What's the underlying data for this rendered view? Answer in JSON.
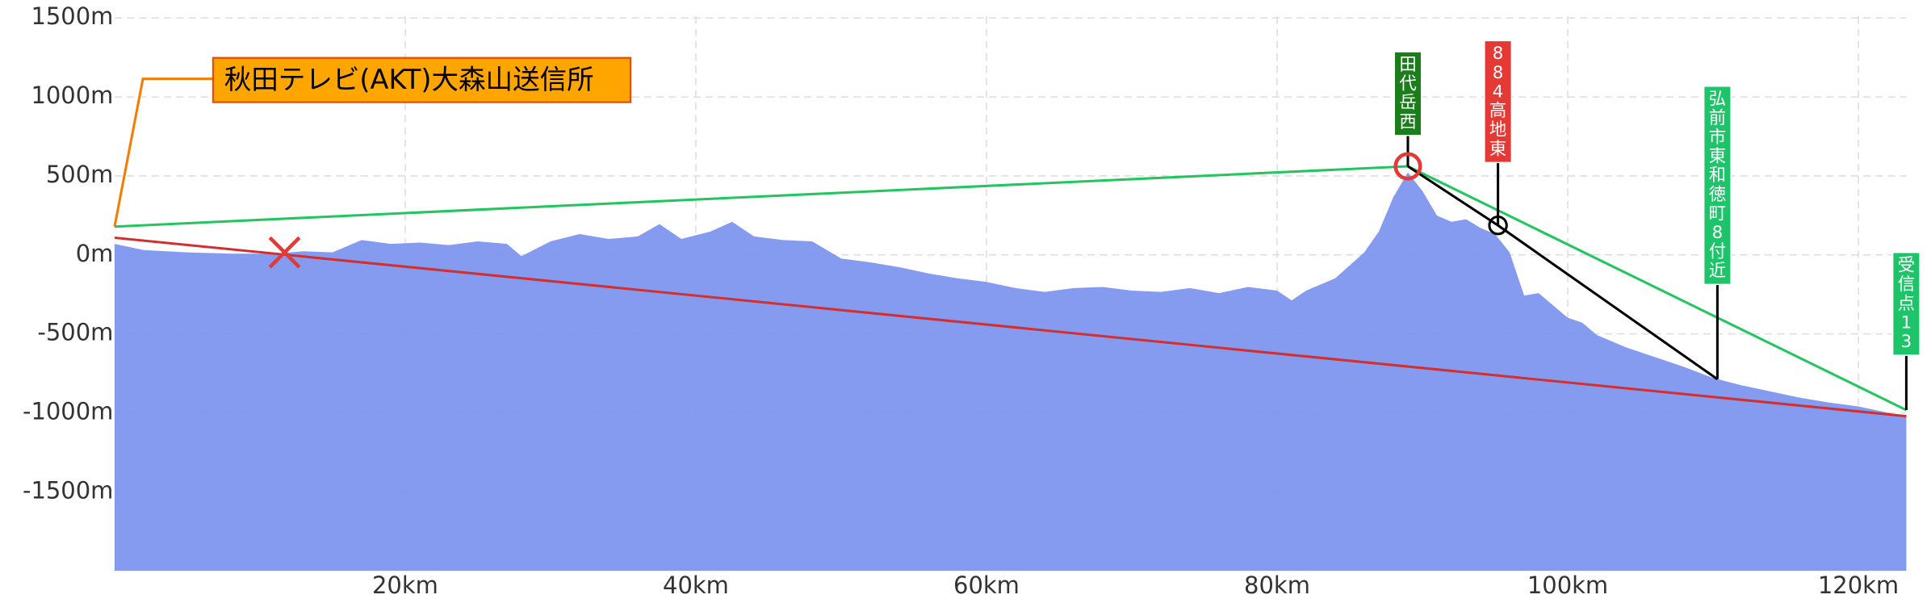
{
  "chart_data": {
    "type": "area",
    "color": "#7b93ee",
    "grid": true,
    "x": [
      0,
      2,
      5,
      8,
      11,
      13,
      15,
      17,
      19,
      21,
      23,
      25,
      27,
      28,
      30,
      32,
      34,
      36,
      37.5,
      39,
      41,
      42.5,
      44,
      46,
      48,
      50,
      52,
      54,
      56,
      58,
      60,
      62,
      64,
      66,
      68,
      70,
      72,
      74,
      76,
      78,
      80,
      81,
      82,
      84,
      86,
      87,
      88,
      89,
      90,
      91,
      92,
      93,
      94,
      95,
      96,
      97,
      98,
      99,
      100,
      101,
      102,
      104,
      106,
      108,
      110,
      112,
      114,
      116,
      118,
      120,
      122,
      123.3
    ],
    "values": [
      70,
      31,
      16,
      8,
      8,
      23,
      16,
      94,
      70,
      78,
      62,
      86,
      70,
      -8,
      86,
      132,
      101,
      117,
      195,
      101,
      148,
      210,
      117,
      94,
      86,
      -23,
      -47,
      -78,
      -117,
      -148,
      -171,
      -210,
      -234,
      -210,
      -203,
      -226,
      -234,
      -210,
      -242,
      -203,
      -226,
      -288,
      -226,
      -148,
      16,
      148,
      366,
      522,
      405,
      249,
      210,
      226,
      171,
      132,
      16,
      -257,
      -242,
      -320,
      -398,
      -429,
      -507,
      -585,
      -647,
      -709,
      -779,
      -826,
      -865,
      -904,
      -935,
      -959,
      -998,
      -1021
    ],
    "xlim": [
      0,
      123.3
    ],
    "ylim": [
      -2000,
      1510
    ],
    "xticks": [
      {
        "value": 20,
        "label": "20km"
      },
      {
        "value": 40,
        "label": "40km"
      },
      {
        "value": 60,
        "label": "60km"
      },
      {
        "value": 80,
        "label": "80km"
      },
      {
        "value": 100,
        "label": "100km"
      },
      {
        "value": 120,
        "label": "120km"
      }
    ],
    "yticks": [
      {
        "value": 1500,
        "label": "1500m"
      },
      {
        "value": 1000,
        "label": "1000m"
      },
      {
        "value": 500,
        "label": "500m"
      },
      {
        "value": 0,
        "label": "0m"
      },
      {
        "value": -500,
        "label": "-500m"
      },
      {
        "value": -1000,
        "label": "-1000m"
      },
      {
        "value": -1500,
        "label": "-1500m"
      }
    ],
    "sight_lines": [
      {
        "color": "#d32f2f",
        "x": [
          0,
          123.3
        ],
        "values": [
          109,
          -1021
        ]
      },
      {
        "color": "#22c55e",
        "x": [
          0,
          89,
          123.3
        ],
        "values": [
          179,
          561,
          -982
        ]
      },
      {
        "color": "#000000",
        "x": [
          89,
          95.2,
          110.3
        ],
        "values": [
          561,
          187,
          -787
        ]
      }
    ],
    "markers": [
      {
        "shape": "circle",
        "x": 89,
        "y": 561,
        "color": "#e53935"
      },
      {
        "shape": "circle",
        "x": 95.2,
        "y": 187,
        "color": "#000000"
      },
      {
        "shape": "cross",
        "x": 11.7,
        "y": 16,
        "color": "#e53935"
      }
    ],
    "annotations": [
      {
        "text": "秋田テレビ(AKT)大森山送信所",
        "x": 0,
        "y": 179,
        "color": "#ffa500"
      },
      {
        "text": "田代岳西",
        "x": 89,
        "y": 561,
        "color": "#1a7f1a"
      },
      {
        "text": "884高地東",
        "x": 95.2,
        "y": 187,
        "color": "#e53935"
      },
      {
        "text": "弘前市東和徳町8付近",
        "x": 110.3,
        "y": -787,
        "color": "#1ec46a"
      },
      {
        "text": "受信点13",
        "x": 123.3,
        "y": -982,
        "color": "#1ec46a"
      }
    ]
  }
}
